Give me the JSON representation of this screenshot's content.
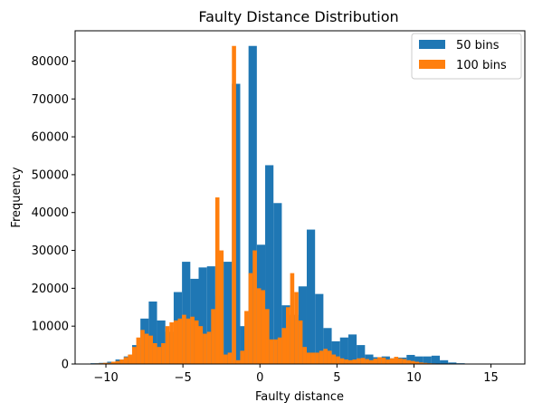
{
  "chart_data": {
    "type": "bar",
    "title": "Faulty Distance Distribution",
    "xlabel": "Faulty distance",
    "ylabel": "Frequency",
    "xlim": [
      -12.0,
      17.2
    ],
    "ylim": [
      0,
      88000
    ],
    "xticks": [
      -10,
      -5,
      0,
      5,
      10,
      15
    ],
    "yticks": [
      0,
      10000,
      20000,
      30000,
      40000,
      50000,
      60000,
      70000,
      80000
    ],
    "grid": false,
    "legend_position": "top-right",
    "colors": {
      "series_50": "#1f77b4",
      "series_100": "#ff7f0e"
    },
    "series": [
      {
        "name": "50 bins",
        "bin_start": -11.0,
        "bin_width": 0.54,
        "values": [
          200,
          300,
          600,
          1200,
          2000,
          5000,
          12000,
          16500,
          11500,
          8500,
          19000,
          27000,
          22500,
          25500,
          25800,
          18000,
          27000,
          74000,
          10000,
          84000,
          31500,
          52500,
          42500,
          15500,
          13000,
          20500,
          35500,
          18500,
          9500,
          6000,
          7000,
          7800,
          5000,
          2500,
          1800,
          2000,
          1500,
          1700,
          2400,
          2000,
          2000,
          2200,
          1000,
          400,
          200,
          100,
          50,
          30,
          20,
          10
        ]
      },
      {
        "name": "100 bins",
        "bin_start": -11.0,
        "bin_width": 0.27,
        "values": [
          100,
          150,
          200,
          300,
          300,
          600,
          800,
          1200,
          1800,
          2500,
          4500,
          7000,
          9000,
          8000,
          7500,
          5500,
          4500,
          5500,
          10000,
          11000,
          11500,
          12000,
          13000,
          12000,
          12500,
          11500,
          10000,
          8000,
          8500,
          14500,
          44000,
          30000,
          2500,
          3000,
          84000,
          1000,
          3500,
          14000,
          24000,
          30000,
          20000,
          19500,
          14500,
          6500,
          6500,
          7000,
          9500,
          15000,
          24000,
          19000,
          11500,
          4500,
          3000,
          3000,
          3000,
          3500,
          4000,
          3500,
          2500,
          2000,
          1500,
          1200,
          1000,
          1200,
          1500,
          1600,
          1300,
          1000,
          1400,
          1800,
          1700,
          1200,
          1500,
          1900,
          1500,
          1300,
          1000,
          800,
          600,
          400,
          300,
          200,
          150,
          100,
          80,
          60,
          50,
          40,
          30,
          20,
          15,
          10,
          10,
          5,
          5,
          5,
          3,
          2,
          1,
          1
        ]
      }
    ]
  }
}
